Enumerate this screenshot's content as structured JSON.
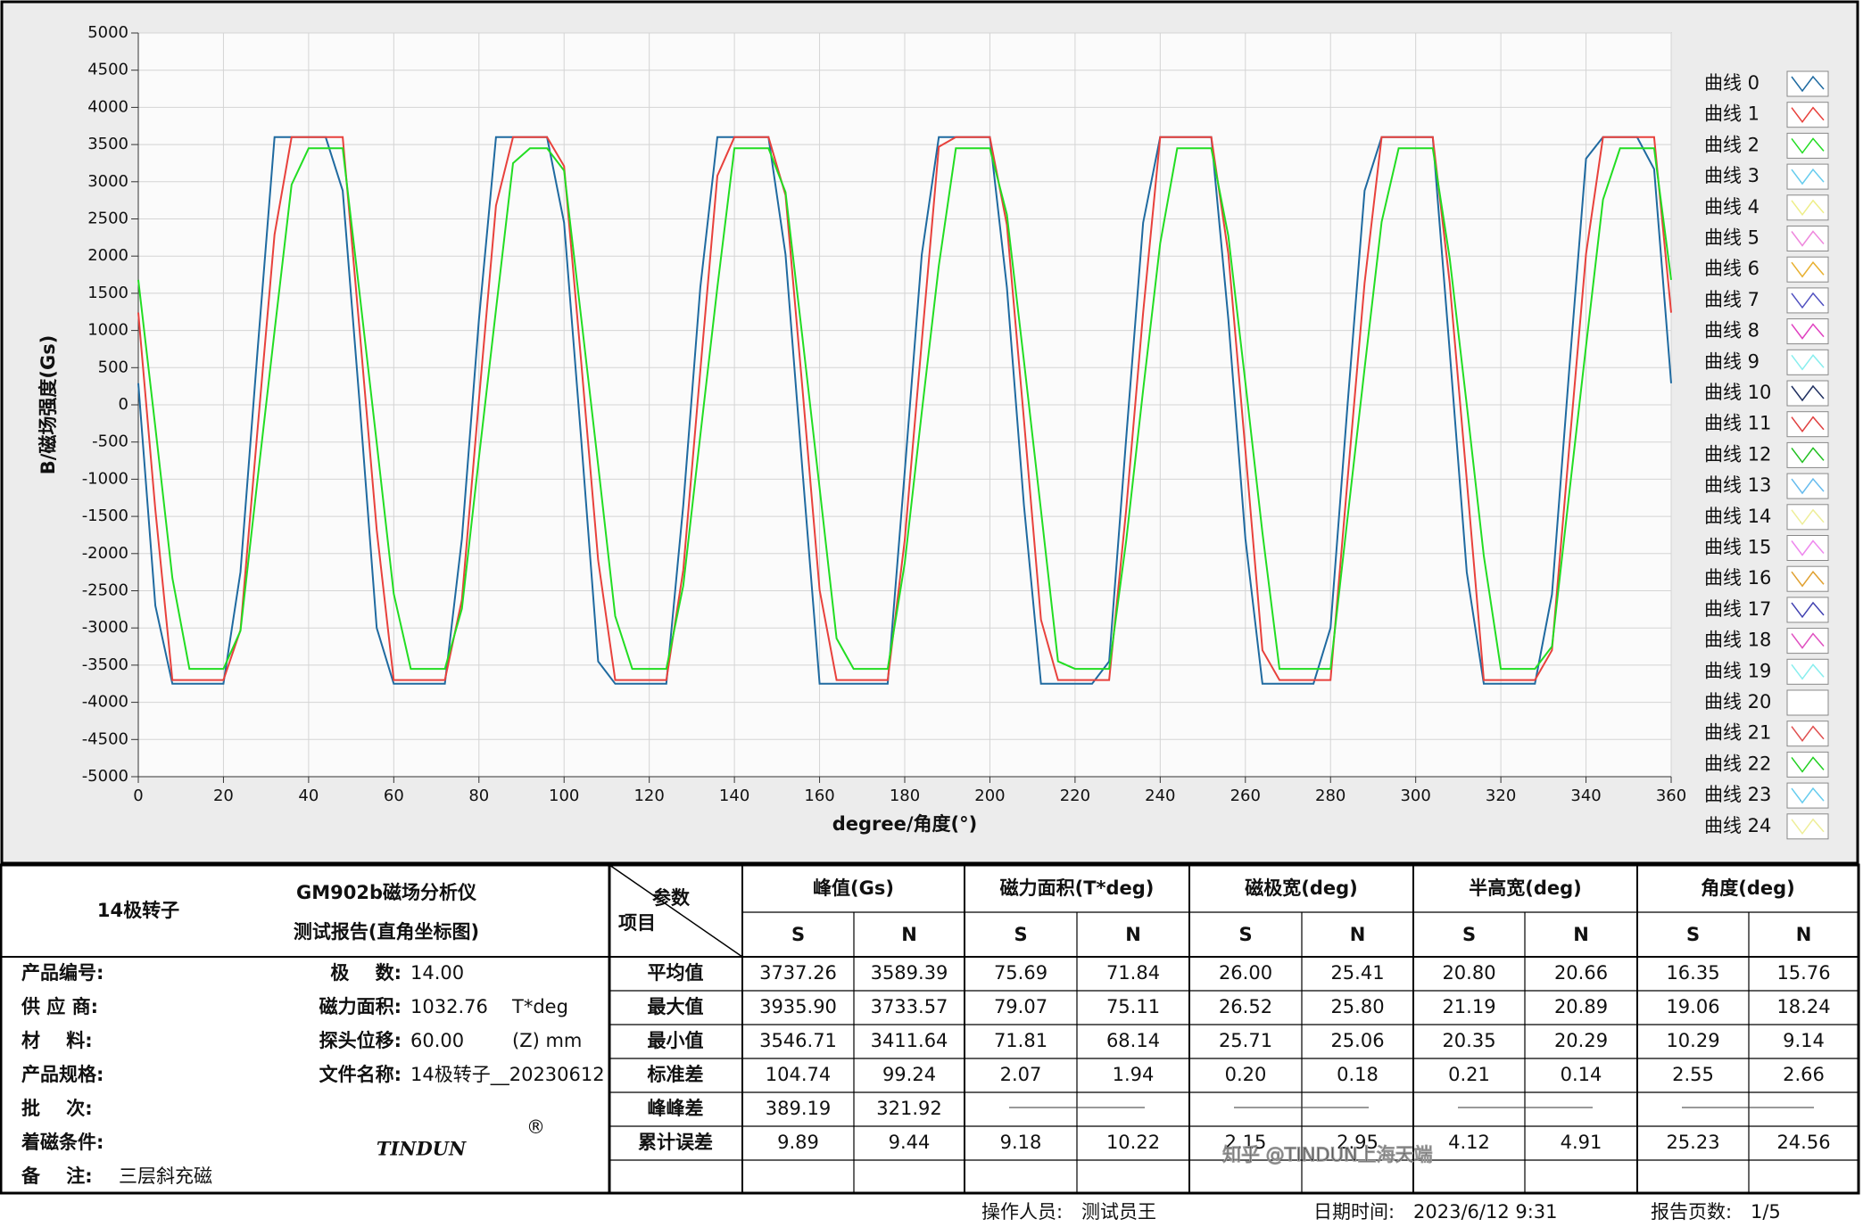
{
  "chart_data": {
    "type": "line",
    "x_label": "degree/角度(°)",
    "y_label": "B/磁场强度(Gs)",
    "xlim": [
      0,
      360
    ],
    "xticks": [
      0,
      20,
      40,
      60,
      80,
      100,
      120,
      140,
      160,
      180,
      200,
      220,
      240,
      260,
      280,
      300,
      320,
      340,
      360
    ],
    "ylim": [
      -5000,
      5000
    ],
    "yticks": [
      -5000,
      -4500,
      -4000,
      -3500,
      -3000,
      -2500,
      -2000,
      -1500,
      -1000,
      -500,
      0,
      500,
      1000,
      1500,
      2000,
      2500,
      3000,
      3500,
      4000,
      4500,
      5000
    ],
    "grid": true,
    "legend": "right",
    "x": [
      0,
      4,
      8,
      12,
      16,
      20,
      24,
      28,
      32,
      36,
      40,
      44,
      48,
      52,
      56,
      60,
      64,
      68,
      72,
      76,
      80,
      84,
      88,
      92,
      96,
      100,
      104,
      108,
      112,
      116,
      120,
      124,
      128,
      132,
      136,
      140,
      144,
      148,
      152,
      156,
      160,
      164,
      168,
      172,
      176,
      180,
      184,
      188,
      192,
      196,
      200,
      204,
      208,
      212,
      216,
      220,
      224,
      228,
      232,
      236,
      240,
      244,
      248,
      252,
      256,
      260,
      264,
      268,
      272,
      276,
      280,
      284,
      288,
      292,
      296,
      300,
      304,
      308,
      312,
      316,
      320,
      324,
      328,
      332,
      336,
      340,
      344,
      348,
      352,
      356,
      360
    ],
    "series": [
      {
        "name": "曲线 0",
        "color": "#1f6aa0",
        "values": [
          290,
          -2700,
          -3750,
          -3750,
          -3750,
          -3750,
          -2250,
          720,
          3600,
          3600,
          3600,
          3600,
          2880,
          0,
          -3000,
          -3750,
          -3750,
          -3750,
          -3750,
          -1800,
          1150,
          3600,
          3600,
          3600,
          3600,
          2450,
          -450,
          -3450,
          -3750,
          -3750,
          -3750,
          -3750,
          -1350,
          1580,
          3600,
          3600,
          3600,
          3600,
          2020,
          -900,
          -3750,
          -3750,
          -3750,
          -3750,
          -3750,
          -900,
          2020,
          3600,
          3600,
          3600,
          3600,
          1580,
          -1350,
          -3750,
          -3750,
          -3750,
          -3750,
          -3450,
          -450,
          2450,
          3600,
          3600,
          3600,
          3600,
          1150,
          -1800,
          -3750,
          -3750,
          -3750,
          -3750,
          -3000,
          0,
          2880,
          3600,
          3600,
          3600,
          3600,
          720,
          -2250,
          -3750,
          -3750,
          -3750,
          -3750,
          -2550,
          430,
          3310,
          3600,
          3600,
          3600,
          3170,
          290
        ]
      },
      {
        "name": "曲线 1",
        "color": "#e8413c",
        "values": [
          1240,
          -1410,
          -3700,
          -3700,
          -3700,
          -3700,
          -3030,
          -340,
          2290,
          3600,
          3600,
          3600,
          3600,
          980,
          -1680,
          -3700,
          -3700,
          -3700,
          -3700,
          -2620,
          70,
          2680,
          3600,
          3600,
          3600,
          3210,
          590,
          -2090,
          -3700,
          -3700,
          -3700,
          -3700,
          -2220,
          460,
          3080,
          3600,
          3600,
          3600,
          2820,
          200,
          -2490,
          -3700,
          -3700,
          -3700,
          -3700,
          -1820,
          850,
          3470,
          3600,
          3600,
          3600,
          2420,
          -200,
          -2890,
          -3700,
          -3700,
          -3700,
          -3700,
          -1410,
          1240,
          3600,
          3600,
          3600,
          3600,
          2030,
          -610,
          -3300,
          -3700,
          -3700,
          -3700,
          -3700,
          -1010,
          1640,
          3600,
          3600,
          3600,
          3600,
          1640,
          -1010,
          -3700,
          -3700,
          -3700,
          -3700,
          -3300,
          -610,
          2030,
          3600,
          3600,
          3600,
          3600,
          1240
        ]
      },
      {
        "name": "曲线 2",
        "color": "#22dd22",
        "values": [
          1680,
          -300,
          -2330,
          -3550,
          -3550,
          -3550,
          -3040,
          -1010,
          990,
          2960,
          3450,
          3450,
          3450,
          1480,
          -510,
          -2540,
          -3550,
          -3550,
          -3550,
          -2740,
          -710,
          1280,
          3250,
          3450,
          3450,
          3150,
          1180,
          -810,
          -2840,
          -3550,
          -3550,
          -3550,
          -2430,
          -410,
          1580,
          3450,
          3450,
          3450,
          2860,
          890,
          -1120,
          -3140,
          -3550,
          -3550,
          -3550,
          -2130,
          -100,
          1870,
          3450,
          3450,
          3450,
          2560,
          590,
          -1420,
          -3450,
          -3550,
          -3550,
          -3550,
          -1830,
          200,
          2170,
          3450,
          3450,
          3450,
          2270,
          300,
          -1720,
          -3550,
          -3550,
          -3550,
          -3550,
          -1520,
          490,
          2460,
          3450,
          3450,
          3450,
          1970,
          0,
          -2030,
          -3550,
          -3550,
          -3550,
          -3250,
          -1220,
          790,
          2760,
          3450,
          3450,
          3450,
          1680
        ]
      },
      {
        "name": "曲线 3",
        "color": "#66ccee"
      },
      {
        "name": "曲线 4",
        "color": "#eeee88"
      },
      {
        "name": "曲线 5",
        "color": "#ee88dd"
      },
      {
        "name": "曲线 6",
        "color": "#e8b030"
      },
      {
        "name": "曲线 7",
        "color": "#5050c0"
      },
      {
        "name": "曲线 8",
        "color": "#e040c0"
      },
      {
        "name": "曲线 9",
        "color": "#88eeee"
      },
      {
        "name": "曲线 10",
        "color": "#203060"
      },
      {
        "name": "曲线 11",
        "color": "#e04040"
      },
      {
        "name": "曲线 12",
        "color": "#20c020"
      },
      {
        "name": "曲线 13",
        "color": "#66bbee"
      },
      {
        "name": "曲线 14",
        "color": "#eeee99"
      },
      {
        "name": "曲线 15",
        "color": "#ee88ee"
      },
      {
        "name": "曲线 16",
        "color": "#e0a030"
      },
      {
        "name": "曲线 17",
        "color": "#4040b0"
      },
      {
        "name": "曲线 18",
        "color": "#e050c0"
      },
      {
        "name": "曲线 19",
        "color": "#88eeee"
      },
      {
        "name": "曲线 20",
        "color": "#ffffff"
      },
      {
        "name": "曲线 21",
        "color": "#e05050"
      },
      {
        "name": "曲线 22",
        "color": "#20d020"
      },
      {
        "name": "曲线 23",
        "color": "#66ccee"
      },
      {
        "name": "曲线 24",
        "color": "#eeee99"
      }
    ]
  },
  "report": {
    "product": "14极转子",
    "title_lines": [
      "GM902b磁场分析仪",
      "测试报告(直角坐标图)"
    ],
    "info_left": [
      "产品编号:",
      "供 应 商:",
      "材    料:",
      "产品规格:",
      "批    次:",
      "着磁条件:",
      "备    注:"
    ],
    "remark": "三层斜充磁",
    "info_right": [
      {
        "label": "极    数:",
        "value": "14.00"
      },
      {
        "label": "磁力面积:",
        "value": "1032.76",
        "unit": "T*deg"
      },
      {
        "label": "探头位移:",
        "value": "60.00",
        "unit": "(Z) mm"
      },
      {
        "label": "文件名称:",
        "value": "14极转子__20230612"
      }
    ],
    "logo": "TINDUN",
    "logo_mark": "®",
    "table": {
      "corner_top": "参数",
      "corner_bottom": "项目",
      "groups": [
        "峰值(Gs)",
        "磁力面积(T*deg)",
        "磁极宽(deg)",
        "半高宽(deg)",
        "角度(deg)"
      ],
      "subheaders": [
        "S",
        "N"
      ],
      "rows": [
        {
          "label": "平均值",
          "cells": [
            "3737.26",
            "3589.39",
            "75.69",
            "71.84",
            "26.00",
            "25.41",
            "20.80",
            "20.66",
            "16.35",
            "15.76"
          ]
        },
        {
          "label": "最大值",
          "cells": [
            "3935.90",
            "3733.57",
            "79.07",
            "75.11",
            "26.52",
            "25.80",
            "21.19",
            "20.89",
            "19.06",
            "18.24"
          ]
        },
        {
          "label": "最小值",
          "cells": [
            "3546.71",
            "3411.64",
            "71.81",
            "68.14",
            "25.71",
            "25.06",
            "20.35",
            "20.29",
            "10.29",
            "9.14"
          ]
        },
        {
          "label": "标准差",
          "cells": [
            "104.74",
            "99.24",
            "2.07",
            "1.94",
            "0.20",
            "0.18",
            "0.21",
            "0.14",
            "2.55",
            "2.66"
          ]
        },
        {
          "label": "峰峰差",
          "cells": [
            "389.19",
            "321.92"
          ]
        },
        {
          "label": "累计误差",
          "cells": [
            "9.89",
            "9.44",
            "9.18",
            "10.22",
            "2.15",
            "2.95",
            "4.12",
            "4.91",
            "25.23",
            "24.56"
          ]
        }
      ]
    },
    "watermark": "知乎 @TINDUN上海天端",
    "footer": [
      {
        "label": "操作人员:",
        "value": "测试员王"
      },
      {
        "label": "日期时间:",
        "value": "2023/6/12 9:31"
      },
      {
        "label": "报告页数:",
        "value": "1/5"
      }
    ]
  }
}
